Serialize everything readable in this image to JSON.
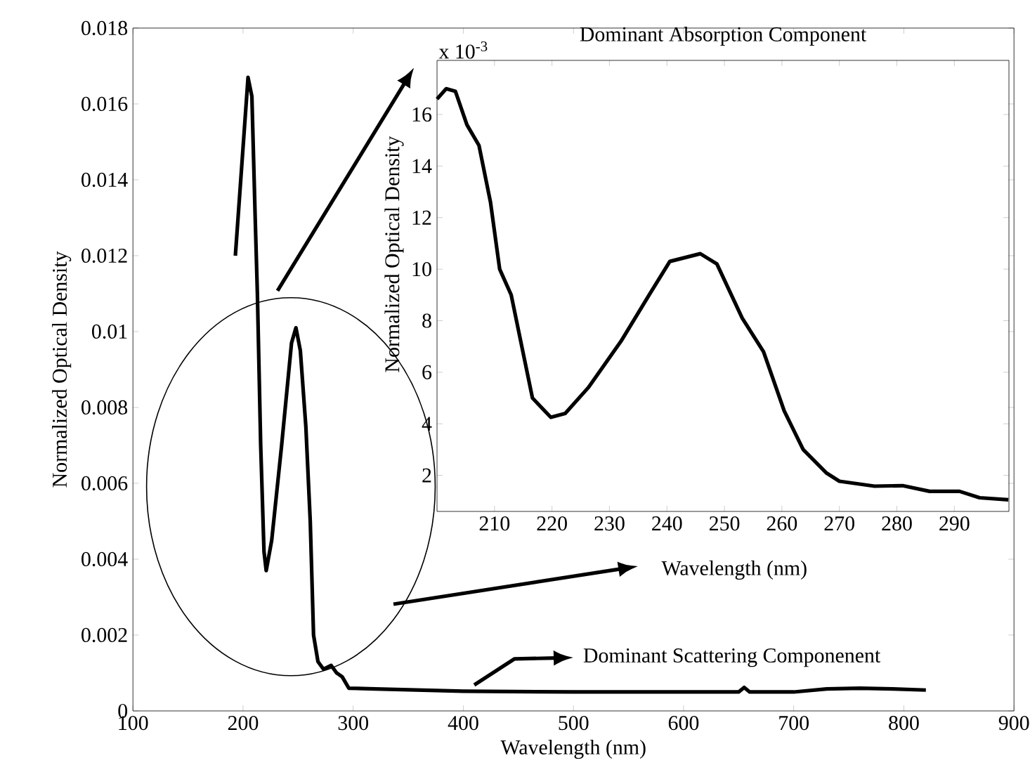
{
  "chart_data": [
    {
      "type": "line",
      "xlabel": "Wavelength (nm)",
      "ylabel": "Normalized Optical Density",
      "marker": "none",
      "line_style": "solid",
      "xlim": [
        100,
        900
      ],
      "ylim": [
        0,
        0.018
      ],
      "xticks": [
        100,
        200,
        300,
        400,
        500,
        600,
        700,
        800,
        900
      ],
      "yticks": [
        0,
        0.002,
        0.004,
        0.006,
        0.008,
        0.01,
        0.012,
        0.014,
        0.016,
        0.018
      ],
      "x": [
        193,
        204.5,
        208,
        211,
        213,
        216,
        219,
        221,
        226,
        235,
        244,
        248,
        252,
        257,
        261,
        264,
        268,
        273,
        280,
        285,
        290,
        296,
        320,
        400,
        500,
        600,
        650,
        655,
        660,
        700,
        730,
        760,
        790,
        820
      ],
      "series": [
        {
          "color": "#000000",
          "values": [
            0.012,
            0.0167,
            0.0162,
            0.013,
            0.011,
            0.007,
            0.0042,
            0.0037,
            0.0045,
            0.007,
            0.0097,
            0.0101,
            0.0095,
            0.0075,
            0.005,
            0.002,
            0.0013,
            0.0011,
            0.0012,
            0.001,
            0.0009,
            0.0006,
            0.00058,
            0.00052,
            0.0005,
            0.0005,
            0.0005,
            0.00062,
            0.0005,
            0.0005,
            0.00058,
            0.0006,
            0.00058,
            0.00055
          ]
        }
      ],
      "annotations": [
        "Dominant Scattering Componenent"
      ]
    },
    {
      "type": "line",
      "title": "Dominant Absorption Component",
      "xlabel": "Wavelength (nm)",
      "ylabel": "Normalized Optical Density",
      "marker": "none",
      "line_style": "solid",
      "xlim": [
        200,
        299.5
      ],
      "ylim": [
        0.6,
        18.1
      ],
      "xticks": [
        210,
        220,
        230,
        240,
        250,
        260,
        270,
        280,
        290
      ],
      "yticks": [
        2,
        4,
        6,
        8,
        10,
        12,
        14,
        16
      ],
      "x": [
        200,
        201.6,
        203.2,
        205.2,
        207.3,
        209.3,
        210.9,
        212.9,
        216.6,
        219.8,
        222.3,
        226.3,
        232,
        236.9,
        240.5,
        245.8,
        248.7,
        253.1,
        256.8,
        260.4,
        263.7,
        267.7,
        270,
        276.1,
        281,
        285.7,
        290.9,
        294.4,
        299.4
      ],
      "series": [
        {
          "color": "#000000",
          "values": [
            16.6,
            17.0,
            16.9,
            15.6,
            14.8,
            12.6,
            10.0,
            9.0,
            5.0,
            4.25,
            4.4,
            5.4,
            7.2,
            9.0,
            10.3,
            10.6,
            10.2,
            8.1,
            6.8,
            4.5,
            3.0,
            2.1,
            1.77,
            1.58,
            1.6,
            1.38,
            1.38,
            1.13,
            1.05
          ]
        }
      ],
      "annotations": [
        "x 10$^{-3}$"
      ]
    }
  ]
}
